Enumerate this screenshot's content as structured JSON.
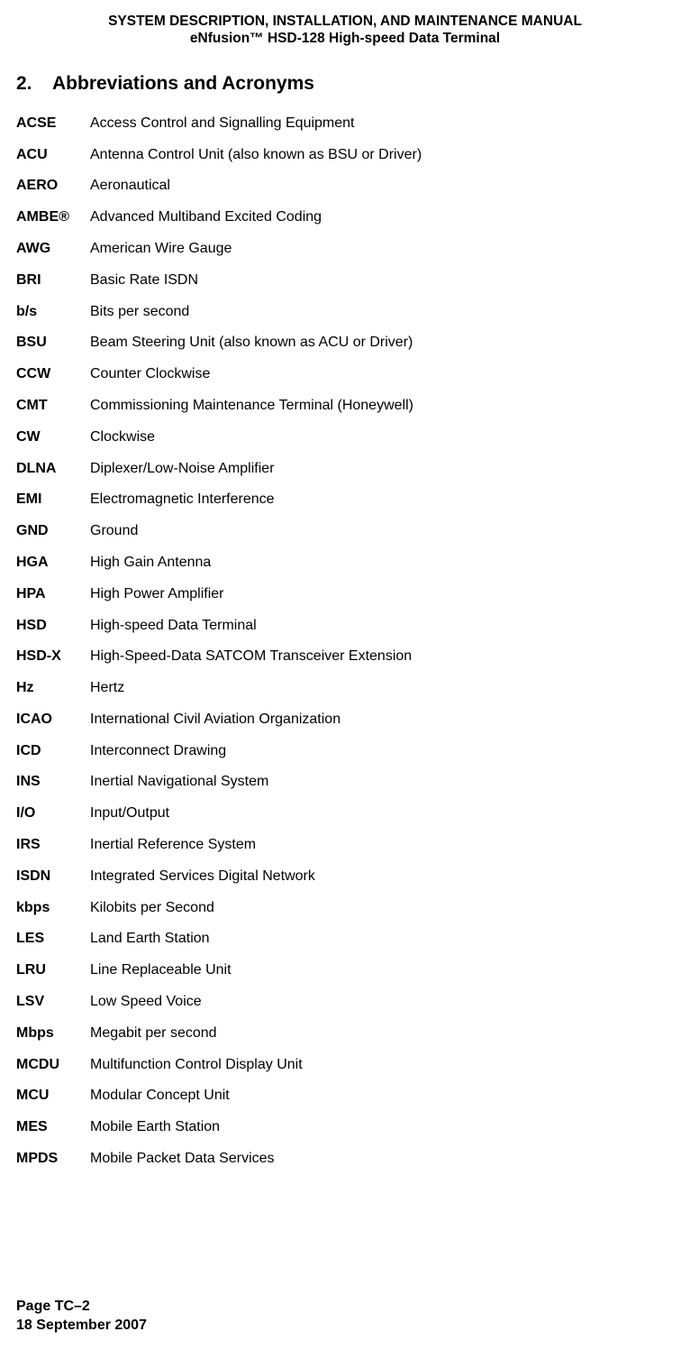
{
  "header": {
    "line1": "SYSTEM DESCRIPTION, INSTALLATION, AND MAINTENANCE MANUAL",
    "line2": "eNfusion™ HSD-128 High-speed Data Terminal"
  },
  "section": {
    "number": "2.",
    "title": "Abbreviations and Acronyms"
  },
  "entries": [
    {
      "term": "ACSE",
      "def": "Access Control and Signalling Equipment"
    },
    {
      "term": "ACU",
      "def": "Antenna Control Unit (also known as BSU or Driver)"
    },
    {
      "term": "AERO",
      "def": "Aeronautical"
    },
    {
      "term": "AMBE®",
      "def": "Advanced Multiband Excited Coding"
    },
    {
      "term": "AWG",
      "def": "American Wire Gauge"
    },
    {
      "term": "BRI",
      "def": "Basic Rate ISDN"
    },
    {
      "term": "b/s",
      "def": "Bits per second"
    },
    {
      "term": "BSU",
      "def": "Beam Steering Unit (also known as ACU or Driver)"
    },
    {
      "term": "CCW",
      "def": "Counter Clockwise"
    },
    {
      "term": "CMT",
      "def": "Commissioning Maintenance Terminal (Honeywell)"
    },
    {
      "term": "CW",
      "def": "Clockwise"
    },
    {
      "term": "DLNA",
      "def": "Diplexer/Low-Noise Amplifier"
    },
    {
      "term": "EMI",
      "def": "Electromagnetic Interference"
    },
    {
      "term": "GND",
      "def": "Ground"
    },
    {
      "term": "HGA",
      "def": "High Gain Antenna"
    },
    {
      "term": "HPA",
      "def": "High Power Amplifier"
    },
    {
      "term": "HSD",
      "def": "High-speed Data Terminal"
    },
    {
      "term": "HSD-X",
      "def": "High-Speed-Data SATCOM Transceiver Extension"
    },
    {
      "term": "Hz",
      "def": "Hertz"
    },
    {
      "term": "ICAO",
      "def": "International Civil Aviation Organization"
    },
    {
      "term": "ICD",
      "def": "Interconnect Drawing"
    },
    {
      "term": "INS",
      "def": "Inertial Navigational System"
    },
    {
      "term": "I/O",
      "def": "Input/Output"
    },
    {
      "term": "IRS",
      "def": "Inertial Reference System"
    },
    {
      "term": "ISDN",
      "def": "Integrated Services Digital Network"
    },
    {
      "term": "kbps",
      "def": "Kilobits per Second"
    },
    {
      "term": "LES",
      "def": "Land Earth Station"
    },
    {
      "term": "LRU",
      "def": "Line Replaceable Unit"
    },
    {
      "term": "LSV",
      "def": "Low Speed Voice"
    },
    {
      "term": "Mbps",
      "def": "Megabit per second"
    },
    {
      "term": "MCDU",
      "def": "Multifunction Control Display Unit"
    },
    {
      "term": "MCU",
      "def": "Modular Concept Unit"
    },
    {
      "term": "MES",
      "def": "Mobile Earth Station"
    },
    {
      "term": "MPDS",
      "def": "Mobile Packet Data Services"
    }
  ],
  "footer": {
    "page": "Page TC–2",
    "date": "18 September 2007"
  }
}
